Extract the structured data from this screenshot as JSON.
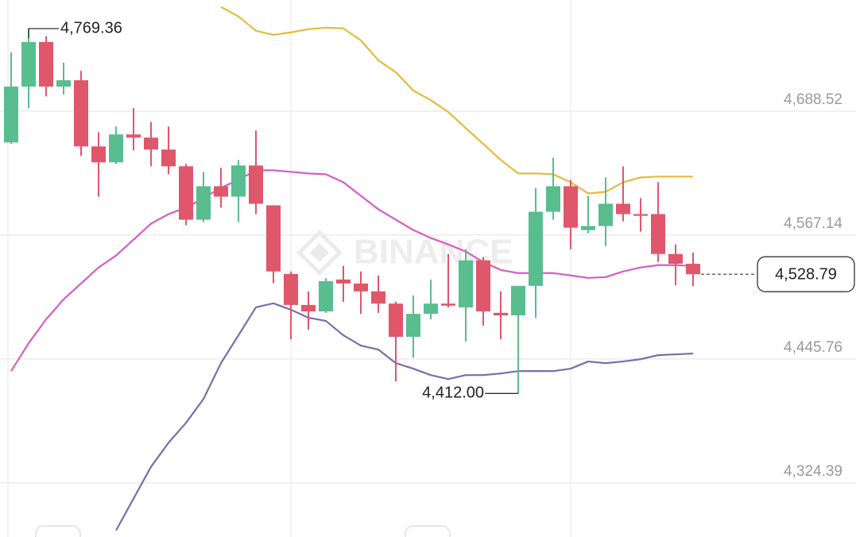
{
  "chart_data": {
    "type": "candlestick",
    "watermark": "BINANCE",
    "ylim": [
      4271.4,
      4797.4
    ],
    "yticks": [
      {
        "value": 4324.39,
        "label": "4,324.39"
      },
      {
        "value": 4445.76,
        "label": "4,445.76"
      },
      {
        "value": 4567.14,
        "label": "4,567.14"
      },
      {
        "value": 4688.52,
        "label": "4,688.52"
      }
    ],
    "grid": true,
    "up_color": "#58bd8f",
    "down_color": "#e0566a",
    "open": [
      4657.9,
      4712.6,
      4756.3,
      4712.6,
      4718.8,
      4654,
      4638.4,
      4665.7,
      4662.6,
      4650.9,
      4634.5,
      4582.2,
      4615,
      4604.8,
      4635.3,
      4596.3,
      4529,
      4498.7,
      4492.4,
      4523.6,
      4519.7,
      4512,
      4500,
      4467.5,
      4490,
      4500,
      4496.3,
      4542.4,
      4491,
      4488.5,
      4517.4,
      4590,
      4615,
      4572,
      4576,
      4597.8,
      4587.7,
      4587.7,
      4548.6,
      4539
    ],
    "high": [
      4746.1,
      4769.36,
      4762,
      4736,
      4728,
      4668,
      4673.5,
      4691.5,
      4678,
      4673.5,
      4636.8,
      4629,
      4633,
      4640.8,
      4669.6,
      4596.3,
      4531.5,
      4512,
      4525,
      4537,
      4531.5,
      4527.5,
      4501.8,
      4508,
      4523.6,
      4548.6,
      4553.3,
      4545.5,
      4512,
      4517.4,
      4613.4,
      4643,
      4621.2,
      4605.6,
      4623.6,
      4634.5,
      4603.3,
      4618.9,
      4558,
      4550
    ],
    "low": [
      4656.4,
      4691.5,
      4703,
      4704.8,
      4644.7,
      4604.8,
      4636.8,
      4650.1,
      4634.5,
      4626.7,
      4576.7,
      4579.9,
      4594,
      4579.9,
      4587.7,
      4520,
      4465,
      4474.5,
      4490.9,
      4501.8,
      4490.1,
      4490.9,
      4423.8,
      4447,
      4484.6,
      4496.3,
      4462.8,
      4478.4,
      4465.1,
      4412.0,
      4486,
      4582.2,
      4553.3,
      4568.9,
      4556.4,
      4580.6,
      4570.5,
      4540.8,
      4518,
      4517
    ],
    "close": [
      4712.6,
      4756.3,
      4712.6,
      4718.8,
      4654,
      4638.4,
      4665.7,
      4662.6,
      4650.9,
      4634.5,
      4582.2,
      4615,
      4604.8,
      4635.3,
      4597.8,
      4531.5,
      4498.7,
      4492.4,
      4522,
      4519.7,
      4512,
      4500,
      4467.5,
      4490,
      4500,
      4498,
      4542.4,
      4492.4,
      4488.5,
      4517.4,
      4590,
      4615,
      4574.4,
      4576,
      4597.8,
      4587.7,
      4586,
      4548.6,
      4539,
      4528.79
    ],
    "overlays": [
      {
        "color": "#e3bc3c",
        "values": [
          null,
          null,
          null,
          null,
          null,
          null,
          null,
          null,
          null,
          null,
          null,
          null,
          4790.6,
          4781.3,
          4767.2,
          4763.3,
          4765.7,
          4768.8,
          4770.3,
          4769.6,
          4757.9,
          4738.3,
          4726.6,
          4708.7,
          4699.3,
          4687.6,
          4672,
          4656.4,
          4640.8,
          4627.5,
          4627.5,
          4626.7,
          4618.9,
          4608,
          4609.5,
          4618.9,
          4623.6,
          4624.4,
          4624.4,
          4624.4
        ]
      },
      {
        "color": "#d65dc4",
        "values": [
          4433.9,
          4461.2,
          4484.6,
          4504.2,
          4519.8,
          4535.4,
          4547.1,
          4562.7,
          4578.3,
          4587.7,
          4593.9,
          4603.3,
          4613.5,
          4621.2,
          4630.6,
          4630.6,
          4629.1,
          4627.5,
          4626.7,
          4618.9,
          4605.6,
          4592.4,
          4582.2,
          4572.1,
          4564.3,
          4558,
          4551,
          4540.8,
          4533,
          4529.9,
          4529.9,
          4529.9,
          4527.6,
          4525.2,
          4526,
          4531.5,
          4535.4,
          4537.7,
          4537.7,
          4536.9
        ]
      },
      {
        "color": "#7c6cab",
        "values": [
          null,
          null,
          null,
          null,
          null,
          null,
          4277.8,
          4309,
          4340.2,
          4363.7,
          4383.2,
          4406.6,
          4441.7,
          4469,
          4496.4,
          4500.3,
          4494,
          4486.2,
          4483.1,
          4469,
          4458.9,
          4455,
          4441.7,
          4436.3,
          4430,
          4426.1,
          4430,
          4430,
          4431.6,
          4433.9,
          4433.9,
          4433.9,
          4436.3,
          4443.3,
          4441.7,
          4443.3,
          4445.6,
          4449.5,
          4450.3,
          4451.1
        ]
      }
    ],
    "annotations": [
      {
        "value": 4769.36,
        "label": "4,769.36"
      },
      {
        "value": 4412.0,
        "label": "4,412.00"
      }
    ],
    "last_price": {
      "value": 4528.79,
      "label": "4,528.79"
    }
  }
}
